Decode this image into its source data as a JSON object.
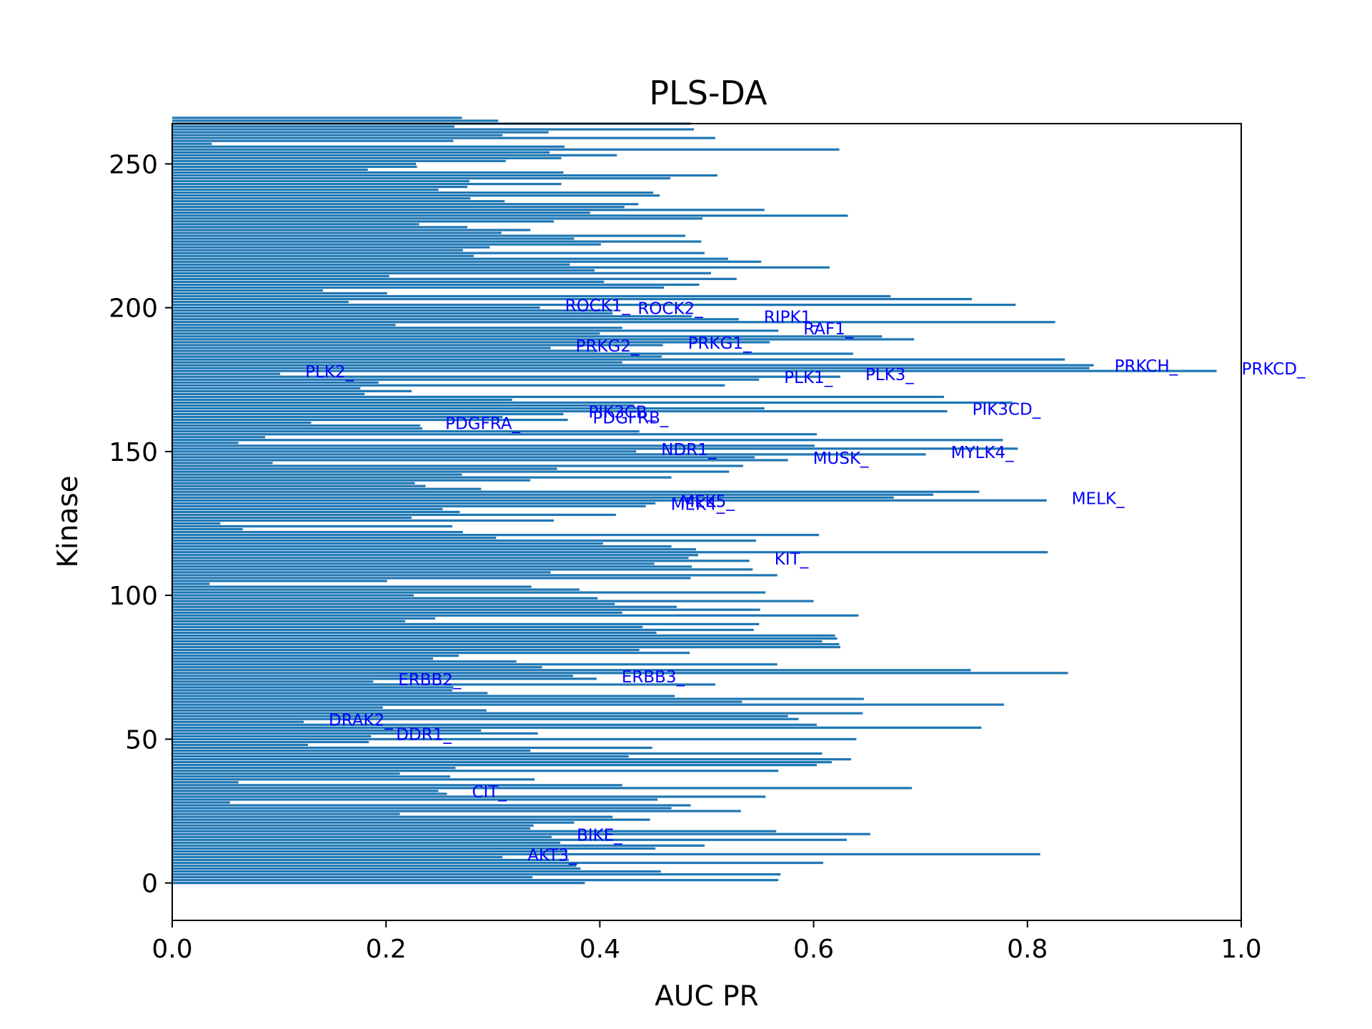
{
  "chart_data": {
    "type": "bar",
    "orientation": "horizontal",
    "title": "PLS-DA",
    "xlabel": "AUC PR",
    "ylabel": "Kinase",
    "xlim": [
      0.0,
      1.0
    ],
    "ylim": [
      -13,
      264
    ],
    "xticks": [
      0.0,
      0.2,
      0.4,
      0.6,
      0.8,
      1.0
    ],
    "xtick_labels": [
      "0.0",
      "0.2",
      "0.4",
      "0.6",
      "0.8",
      "1.0"
    ],
    "yticks": [
      0,
      50,
      100,
      150,
      200,
      250
    ],
    "ytick_labels": [
      "0",
      "50",
      "100",
      "150",
      "200",
      "250"
    ],
    "bar_color": "#1f77b4",
    "annotation_color": "#0000ff",
    "values": [
      0.386,
      0.567,
      0.337,
      0.569,
      0.457,
      0.382,
      0.378,
      0.609,
      0.371,
      0.309,
      0.812,
      0.368,
      0.452,
      0.498,
      0.363,
      0.631,
      0.355,
      0.653,
      0.565,
      0.335,
      0.338,
      0.376,
      0.447,
      0.412,
      0.213,
      0.532,
      0.467,
      0.485,
      0.054,
      0.454,
      0.555,
      0.257,
      0.249,
      0.692,
      0.421,
      0.062,
      0.339,
      0.26,
      0.213,
      0.567,
      0.265,
      0.603,
      0.617,
      0.635,
      0.427,
      0.608,
      0.335,
      0.449,
      0.127,
      0.184,
      0.64,
      0.186,
      0.342,
      0.289,
      0.757,
      0.603,
      0.123,
      0.586,
      0.576,
      0.646,
      0.294,
      0.197,
      0.778,
      0.533,
      0.647,
      0.47,
      0.295,
      0.262,
      0.263,
      0.508,
      0.188,
      0.397,
      0.375,
      0.838,
      0.747,
      0.346,
      0.566,
      0.322,
      0.244,
      0.268,
      0.484,
      0.437,
      0.625,
      0.624,
      0.608,
      0.622,
      0.62,
      0.453,
      0.544,
      0.44,
      0.549,
      0.218,
      0.246,
      0.642,
      0.421,
      0.55,
      0.472,
      0.414,
      0.6,
      0.398,
      0.226,
      0.555,
      0.381,
      0.336,
      0.035,
      0.201,
      0.485,
      0.566,
      0.354,
      0.543,
      0.486,
      0.451,
      0.54,
      0.483,
      0.492,
      0.819,
      0.49,
      0.467,
      0.403,
      0.546,
      0.303,
      0.605,
      0.272,
      0.066,
      0.262,
      0.045,
      0.357,
      0.224,
      0.415,
      0.269,
      0.253,
      0.443,
      0.452,
      0.818,
      0.675,
      0.712,
      0.755,
      0.289,
      0.237,
      0.227,
      0.335,
      0.467,
      0.271,
      0.521,
      0.36,
      0.534,
      0.094,
      0.576,
      0.545,
      0.705,
      0.434,
      0.791,
      0.601,
      0.062,
      0.777,
      0.087,
      0.603,
      0.437,
      0.234,
      0.232,
      0.13,
      0.37,
      0.309,
      0.366,
      0.725,
      0.554,
      0.432,
      0.786,
      0.318,
      0.722,
      0.18,
      0.224,
      0.176,
      0.517,
      0.193,
      0.549,
      0.625,
      0.101,
      0.977,
      0.858,
      0.862,
      0.421,
      0.835,
      0.458,
      0.637,
      0.398,
      0.354,
      0.459,
      0.559,
      0.694,
      0.664,
      0.4,
      0.567,
      0.421,
      0.209,
      0.826,
      0.53,
      0.486,
      0.412,
      0.412,
      0.344,
      0.789,
      0.165,
      0.748,
      0.672,
      0.201,
      0.141,
      0.46,
      0.493,
      0.404,
      0.528,
      0.203,
      0.504,
      0.395,
      0.615,
      0.372,
      0.551,
      0.52,
      0.282,
      0.498,
      0.272,
      0.297,
      0.401,
      0.495,
      0.376,
      0.48,
      0.308,
      0.335,
      0.276,
      0.231,
      0.357,
      0.496,
      0.632,
      0.391,
      0.554,
      0.423,
      0.436,
      0.311,
      0.279,
      0.456,
      0.45,
      0.249,
      0.276,
      0.364,
      0.278,
      0.466,
      0.51,
      0.366,
      0.183,
      0.229,
      0.228,
      0.312,
      0.364,
      0.416,
      0.353,
      0.624,
      0.367,
      0.037,
      0.263,
      0.508,
      0.309,
      0.352,
      0.488,
      0.264,
      0.485,
      0.305,
      0.271
    ],
    "annotations": [
      {
        "label": "AKT3_",
        "index": 9
      },
      {
        "label": "BIKE_",
        "index": 16
      },
      {
        "label": "CIT_",
        "index": 31
      },
      {
        "label": "DDR1_",
        "index": 51
      },
      {
        "label": "DRAK2_",
        "index": 56
      },
      {
        "label": "ERBB2_",
        "index": 70
      },
      {
        "label": "ERBB3_",
        "index": 71
      },
      {
        "label": "KIT_",
        "index": 112
      },
      {
        "label": "MEK4_",
        "index": 131
      },
      {
        "label": "MEK5_",
        "index": 132
      },
      {
        "label": "MELK_",
        "index": 133
      },
      {
        "label": "MUSK_",
        "index": 147
      },
      {
        "label": "MYLK4_",
        "index": 149
      },
      {
        "label": "NDR1_",
        "index": 150
      },
      {
        "label": "PDGFRA_",
        "index": 159
      },
      {
        "label": "PDGFRB_",
        "index": 161
      },
      {
        "label": "PIK3CB_",
        "index": 163
      },
      {
        "label": "PIK3CD_",
        "index": 164
      },
      {
        "label": "PLK1_",
        "index": 175
      },
      {
        "label": "PLK3_",
        "index": 176
      },
      {
        "label": "PLK2_",
        "index": 177
      },
      {
        "label": "PRKCD_",
        "index": 178
      },
      {
        "label": "PRKCH_",
        "index": 179
      },
      {
        "label": "PRKG2_",
        "index": 186
      },
      {
        "label": "PRKG1_",
        "index": 187
      },
      {
        "label": "RAF1_",
        "index": 192
      },
      {
        "label": "RIPK1_",
        "index": 196
      },
      {
        "label": "ROCK2_",
        "index": 199
      },
      {
        "label": "ROCK1_",
        "index": 200
      }
    ]
  }
}
